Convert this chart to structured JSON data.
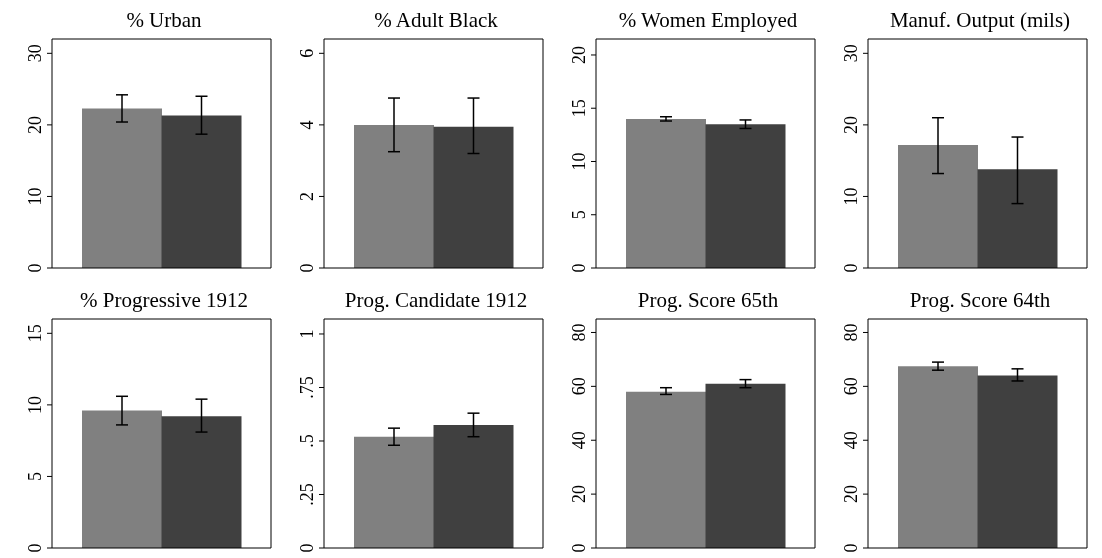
{
  "chart_data": [
    {
      "type": "bar",
      "title": "% Urban",
      "categories": [
        null,
        null
      ],
      "values": [
        22.3,
        21.3
      ],
      "colors": [
        "#808080",
        "#404040"
      ],
      "errors": [
        [
          20.4,
          24.2
        ],
        [
          18.7,
          24.0
        ]
      ],
      "ylim": [
        0,
        32
      ],
      "yticks": [
        0,
        10,
        20,
        30
      ]
    },
    {
      "type": "bar",
      "title": "% Adult Black",
      "categories": [
        null,
        null
      ],
      "values": [
        4.0,
        3.95
      ],
      "colors": [
        "#808080",
        "#404040"
      ],
      "errors": [
        [
          3.25,
          4.75
        ],
        [
          3.2,
          4.75
        ]
      ],
      "ylim": [
        0,
        6.4
      ],
      "yticks": [
        0,
        2,
        4,
        6
      ]
    },
    {
      "type": "bar",
      "title": "% Women Employed",
      "categories": [
        null,
        null
      ],
      "values": [
        14.0,
        13.5
      ],
      "colors": [
        "#808080",
        "#404040"
      ],
      "errors": [
        [
          13.8,
          14.2
        ],
        [
          13.1,
          13.9
        ]
      ],
      "ylim": [
        0,
        21.5
      ],
      "yticks": [
        0,
        5,
        10,
        15,
        20
      ]
    },
    {
      "type": "bar",
      "title": "Manuf. Output (mils)",
      "categories": [
        null,
        null
      ],
      "values": [
        17.2,
        13.8
      ],
      "colors": [
        "#808080",
        "#404040"
      ],
      "errors": [
        [
          13.2,
          21.0
        ],
        [
          9.0,
          18.3
        ]
      ],
      "ylim": [
        0,
        32
      ],
      "yticks": [
        0,
        10,
        20,
        30
      ]
    },
    {
      "type": "bar",
      "title": "% Progressive 1912",
      "categories": [
        null,
        null
      ],
      "values": [
        9.6,
        9.2
      ],
      "colors": [
        "#808080",
        "#404040"
      ],
      "errors": [
        [
          8.6,
          10.6
        ],
        [
          8.1,
          10.4
        ]
      ],
      "ylim": [
        0,
        16
      ],
      "yticks": [
        0,
        5,
        10,
        15
      ]
    },
    {
      "type": "bar",
      "title": "Prog. Candidate 1912",
      "categories": [
        null,
        null
      ],
      "values": [
        0.52,
        0.575
      ],
      "colors": [
        "#808080",
        "#404040"
      ],
      "errors": [
        [
          0.48,
          0.56
        ],
        [
          0.52,
          0.63
        ]
      ],
      "ylim": [
        0,
        1.07
      ],
      "yticks": [
        0,
        {
          "value": 0.25,
          "label": ".25"
        },
        {
          "value": 0.5,
          "label": ".5"
        },
        {
          "value": 0.75,
          "label": ".75"
        },
        1
      ]
    },
    {
      "type": "bar",
      "title": "Prog. Score 65th",
      "categories": [
        null,
        null
      ],
      "values": [
        58,
        61
      ],
      "colors": [
        "#808080",
        "#404040"
      ],
      "errors": [
        [
          57,
          59.5
        ],
        [
          59.5,
          62.5
        ]
      ],
      "ylim": [
        0,
        85
      ],
      "yticks": [
        0,
        20,
        40,
        60,
        80
      ]
    },
    {
      "type": "bar",
      "title": "Prog. Score 64th",
      "categories": [
        null,
        null
      ],
      "values": [
        67.5,
        64
      ],
      "colors": [
        "#808080",
        "#404040"
      ],
      "errors": [
        [
          66,
          69
        ],
        [
          62,
          66.5
        ]
      ],
      "ylim": [
        0,
        85
      ],
      "yticks": [
        0,
        20,
        40,
        60,
        80
      ]
    }
  ]
}
